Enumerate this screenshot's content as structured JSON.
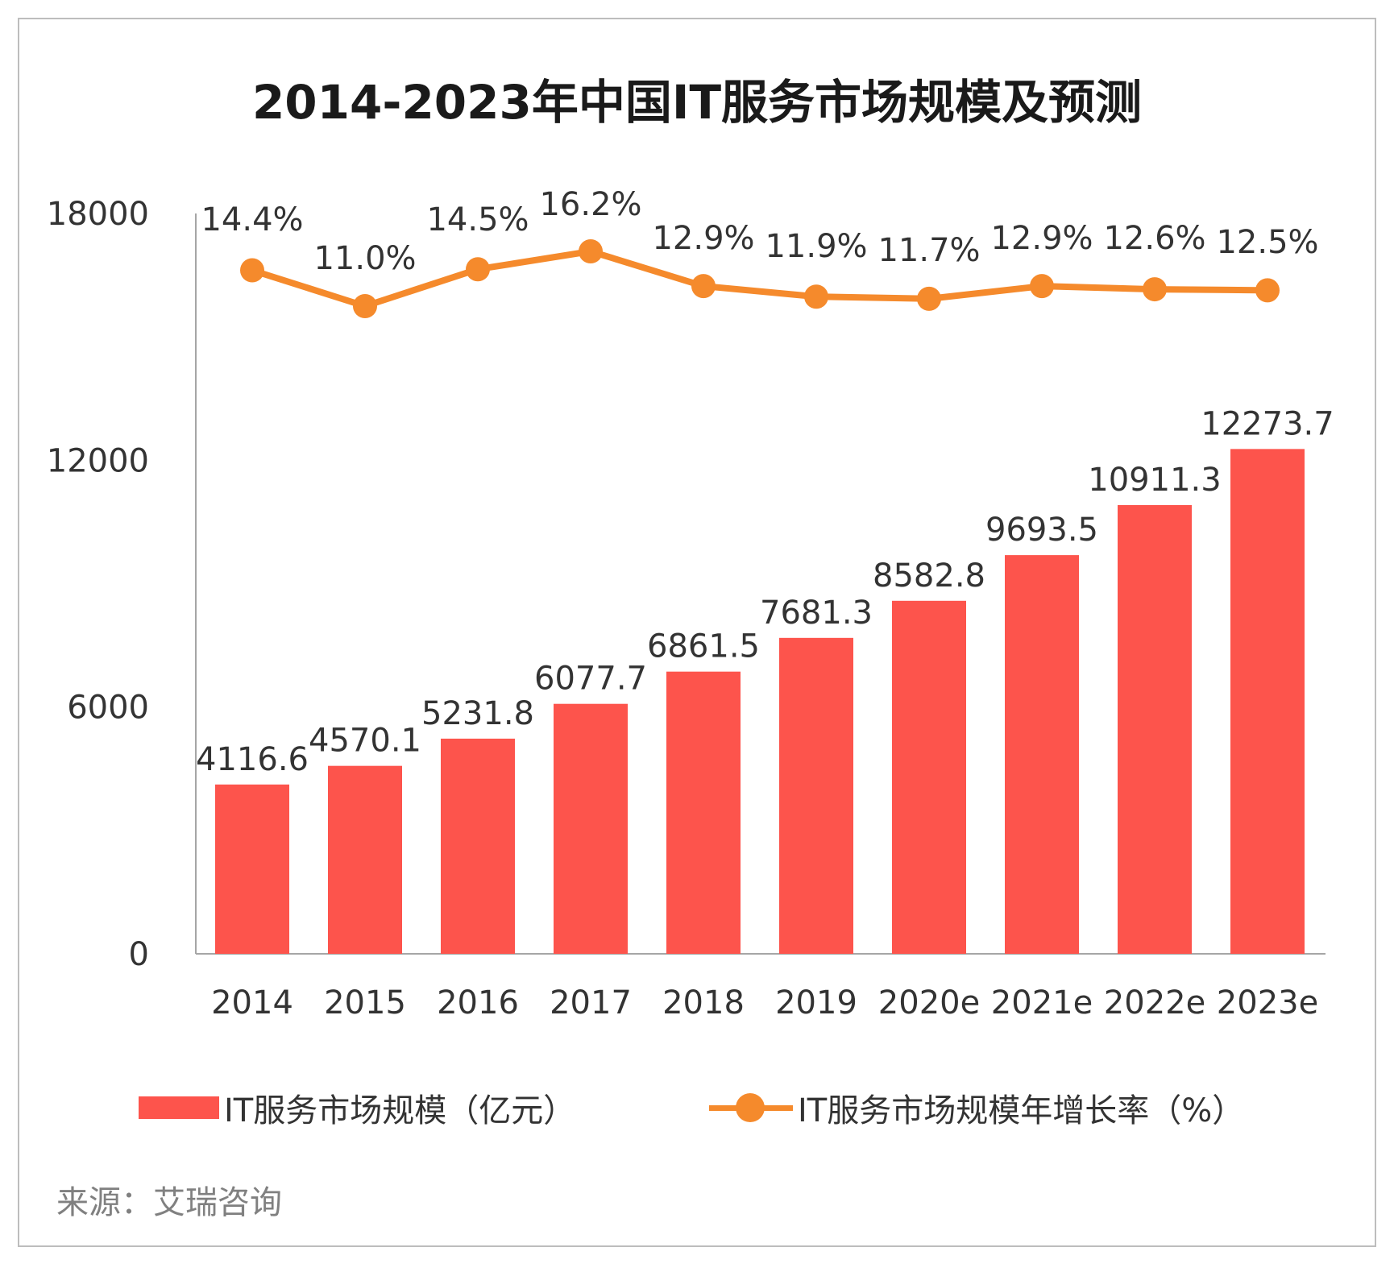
{
  "colors": {
    "bar": "#fd544c",
    "line": "#f58a2c",
    "axis": "#a6a6a6"
  },
  "chart_data": {
    "type": "bar",
    "title": "2014-2023年中国IT服务市场规模及预测",
    "categories": [
      "2014",
      "2015",
      "2016",
      "2017",
      "2018",
      "2019",
      "2020e",
      "2021e",
      "2022e",
      "2023e"
    ],
    "series": [
      {
        "name": "IT服务市场规模（亿元）",
        "type": "bar",
        "values": [
          4116.6,
          4570.1,
          5231.8,
          6077.7,
          6861.5,
          7681.3,
          8582.8,
          9693.5,
          10911.3,
          12273.7
        ],
        "labels": [
          "4116.6",
          "4570.1",
          "5231.8",
          "6077.7",
          "6861.5",
          "7681.3",
          "8582.8",
          "9693.5",
          "10911.3",
          "12273.7"
        ]
      },
      {
        "name": "IT服务市场规模年增长率（%）",
        "type": "line",
        "values": [
          14.4,
          11.0,
          14.5,
          16.2,
          12.9,
          11.9,
          11.7,
          12.9,
          12.6,
          12.5
        ],
        "labels": [
          "14.4%",
          "11.0%",
          "14.5%",
          "16.2%",
          "12.9%",
          "11.9%",
          "11.7%",
          "12.9%",
          "12.6%",
          "12.5%"
        ]
      }
    ],
    "yticks": [
      "0",
      "6000",
      "12000",
      "18000"
    ],
    "ylim": [
      0,
      18000
    ],
    "legend_position": "bottom",
    "grid": false
  },
  "source": "来源：艾瑞咨询"
}
